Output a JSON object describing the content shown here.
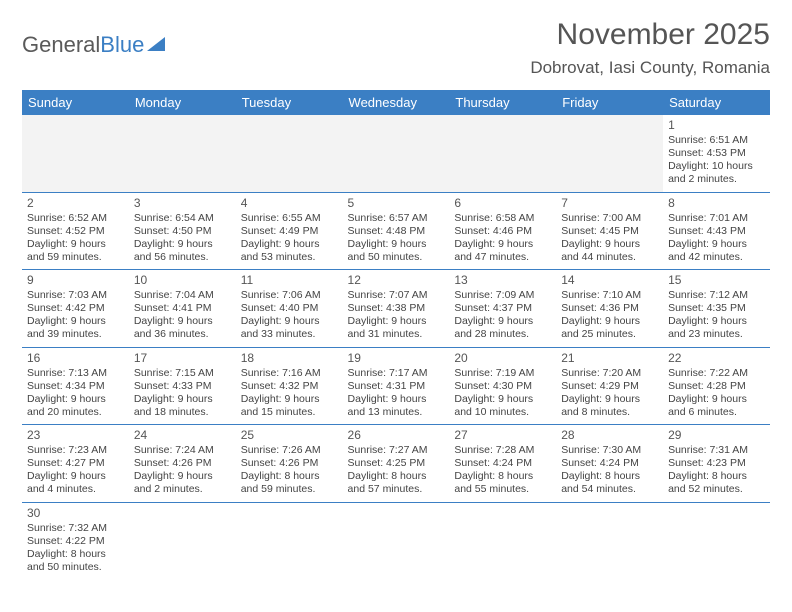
{
  "logo": {
    "part1": "General",
    "part2": "Blue"
  },
  "title": "November 2025",
  "location": "Dobrovat, Iasi County, Romania",
  "weekdays": [
    "Sunday",
    "Monday",
    "Tuesday",
    "Wednesday",
    "Thursday",
    "Friday",
    "Saturday"
  ],
  "colors": {
    "header_bg": "#3b7fc4",
    "header_text": "#ffffff",
    "text": "#444444",
    "rule": "#3b7fc4"
  },
  "weeks": [
    [
      null,
      null,
      null,
      null,
      null,
      null,
      {
        "d": "1",
        "sr": "6:51 AM",
        "ss": "4:53 PM",
        "dl": "10 hours and 2 minutes."
      }
    ],
    [
      {
        "d": "2",
        "sr": "6:52 AM",
        "ss": "4:52 PM",
        "dl": "9 hours and 59 minutes."
      },
      {
        "d": "3",
        "sr": "6:54 AM",
        "ss": "4:50 PM",
        "dl": "9 hours and 56 minutes."
      },
      {
        "d": "4",
        "sr": "6:55 AM",
        "ss": "4:49 PM",
        "dl": "9 hours and 53 minutes."
      },
      {
        "d": "5",
        "sr": "6:57 AM",
        "ss": "4:48 PM",
        "dl": "9 hours and 50 minutes."
      },
      {
        "d": "6",
        "sr": "6:58 AM",
        "ss": "4:46 PM",
        "dl": "9 hours and 47 minutes."
      },
      {
        "d": "7",
        "sr": "7:00 AM",
        "ss": "4:45 PM",
        "dl": "9 hours and 44 minutes."
      },
      {
        "d": "8",
        "sr": "7:01 AM",
        "ss": "4:43 PM",
        "dl": "9 hours and 42 minutes."
      }
    ],
    [
      {
        "d": "9",
        "sr": "7:03 AM",
        "ss": "4:42 PM",
        "dl": "9 hours and 39 minutes."
      },
      {
        "d": "10",
        "sr": "7:04 AM",
        "ss": "4:41 PM",
        "dl": "9 hours and 36 minutes."
      },
      {
        "d": "11",
        "sr": "7:06 AM",
        "ss": "4:40 PM",
        "dl": "9 hours and 33 minutes."
      },
      {
        "d": "12",
        "sr": "7:07 AM",
        "ss": "4:38 PM",
        "dl": "9 hours and 31 minutes."
      },
      {
        "d": "13",
        "sr": "7:09 AM",
        "ss": "4:37 PM",
        "dl": "9 hours and 28 minutes."
      },
      {
        "d": "14",
        "sr": "7:10 AM",
        "ss": "4:36 PM",
        "dl": "9 hours and 25 minutes."
      },
      {
        "d": "15",
        "sr": "7:12 AM",
        "ss": "4:35 PM",
        "dl": "9 hours and 23 minutes."
      }
    ],
    [
      {
        "d": "16",
        "sr": "7:13 AM",
        "ss": "4:34 PM",
        "dl": "9 hours and 20 minutes."
      },
      {
        "d": "17",
        "sr": "7:15 AM",
        "ss": "4:33 PM",
        "dl": "9 hours and 18 minutes."
      },
      {
        "d": "18",
        "sr": "7:16 AM",
        "ss": "4:32 PM",
        "dl": "9 hours and 15 minutes."
      },
      {
        "d": "19",
        "sr": "7:17 AM",
        "ss": "4:31 PM",
        "dl": "9 hours and 13 minutes."
      },
      {
        "d": "20",
        "sr": "7:19 AM",
        "ss": "4:30 PM",
        "dl": "9 hours and 10 minutes."
      },
      {
        "d": "21",
        "sr": "7:20 AM",
        "ss": "4:29 PM",
        "dl": "9 hours and 8 minutes."
      },
      {
        "d": "22",
        "sr": "7:22 AM",
        "ss": "4:28 PM",
        "dl": "9 hours and 6 minutes."
      }
    ],
    [
      {
        "d": "23",
        "sr": "7:23 AM",
        "ss": "4:27 PM",
        "dl": "9 hours and 4 minutes."
      },
      {
        "d": "24",
        "sr": "7:24 AM",
        "ss": "4:26 PM",
        "dl": "9 hours and 2 minutes."
      },
      {
        "d": "25",
        "sr": "7:26 AM",
        "ss": "4:26 PM",
        "dl": "8 hours and 59 minutes."
      },
      {
        "d": "26",
        "sr": "7:27 AM",
        "ss": "4:25 PM",
        "dl": "8 hours and 57 minutes."
      },
      {
        "d": "27",
        "sr": "7:28 AM",
        "ss": "4:24 PM",
        "dl": "8 hours and 55 minutes."
      },
      {
        "d": "28",
        "sr": "7:30 AM",
        "ss": "4:24 PM",
        "dl": "8 hours and 54 minutes."
      },
      {
        "d": "29",
        "sr": "7:31 AM",
        "ss": "4:23 PM",
        "dl": "8 hours and 52 minutes."
      }
    ],
    [
      {
        "d": "30",
        "sr": "7:32 AM",
        "ss": "4:22 PM",
        "dl": "8 hours and 50 minutes."
      },
      null,
      null,
      null,
      null,
      null,
      null
    ]
  ],
  "labels": {
    "sunrise": "Sunrise:",
    "sunset": "Sunset:",
    "daylight": "Daylight:"
  }
}
